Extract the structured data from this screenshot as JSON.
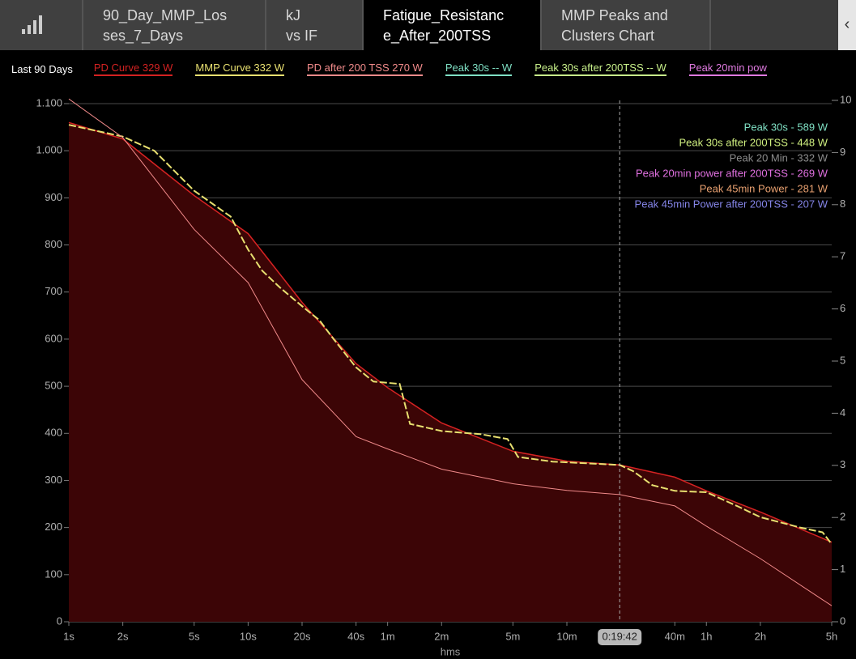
{
  "tabs": [
    {
      "lines": [
        "90_Day_MMP_Los",
        "ses_7_Days"
      ]
    },
    {
      "lines": [
        "kJ",
        "vs IF"
      ]
    },
    {
      "lines": [
        "Fatigue_Resistanc",
        "e_After_200TSS"
      ]
    },
    {
      "lines": [
        "MMP Peaks and",
        "Clusters Chart"
      ]
    }
  ],
  "back_button": "‹",
  "legend_title": "Last 90 Days",
  "chart_data": {
    "type": "line",
    "x_label": "hms",
    "x_log": true,
    "xlim": [
      1,
      18000
    ],
    "xticks": [
      {
        "value": 1,
        "label": "1s"
      },
      {
        "value": 2,
        "label": "2s"
      },
      {
        "value": 5,
        "label": "5s"
      },
      {
        "value": 10,
        "label": "10s"
      },
      {
        "value": 20,
        "label": "20s"
      },
      {
        "value": 40,
        "label": "40s"
      },
      {
        "value": 60,
        "label": "1m"
      },
      {
        "value": 120,
        "label": "2m"
      },
      {
        "value": 300,
        "label": "5m"
      },
      {
        "value": 600,
        "label": "10m"
      },
      {
        "value": 2400,
        "label": "40m"
      },
      {
        "value": 3600,
        "label": "1h"
      },
      {
        "value": 7200,
        "label": "2h"
      },
      {
        "value": 18000,
        "label": "5h"
      }
    ],
    "ylim": [
      0,
      1100
    ],
    "yticks": [
      0,
      100,
      200,
      300,
      400,
      500,
      600,
      700,
      800,
      900,
      {
        "value": 1000,
        "label": "1.000"
      },
      {
        "value": 1100,
        "label": "1.100"
      }
    ],
    "y2lim": [
      0,
      10
    ],
    "y2ticks": [
      0,
      1,
      2,
      3,
      4,
      5,
      6,
      7,
      8,
      9,
      10
    ],
    "grid": true,
    "cursor": {
      "value": 1182,
      "label": "0:19:42"
    },
    "series": [
      {
        "name": "PD Curve  329 W",
        "color": "#d42222",
        "fill": "#3c0506",
        "x": [
          1,
          2,
          5,
          10,
          20,
          40,
          60,
          120,
          300,
          600,
          1182,
          2400,
          3600,
          7200,
          18000
        ],
        "values": [
          1060,
          1025,
          905,
          824,
          678,
          548,
          497,
          422,
          362,
          341,
          333,
          307,
          278,
          233,
          169
        ]
      },
      {
        "name": "MMP Curve  332 W",
        "color": "#e8e070",
        "dashed": true,
        "x": [
          1,
          2,
          3,
          5,
          8,
          10,
          12,
          15,
          20,
          25,
          30,
          40,
          50,
          70,
          80,
          120,
          200,
          280,
          320,
          500,
          1182,
          1400,
          1800,
          2400,
          3600,
          5400,
          7200,
          12000,
          16000,
          18000
        ],
        "values": [
          1055,
          1030,
          1000,
          915,
          860,
          790,
          745,
          710,
          670,
          640,
          600,
          540,
          510,
          505,
          420,
          405,
          398,
          388,
          350,
          340,
          333,
          320,
          290,
          278,
          275,
          245,
          222,
          200,
          190,
          165
        ]
      },
      {
        "name": "PD after 200 TSS  270 W",
        "color": "#f08a8a",
        "x": [
          1,
          2,
          5,
          10,
          20,
          40,
          60,
          120,
          300,
          600,
          1182,
          2400,
          3600,
          7200,
          18000
        ],
        "values": [
          1110,
          1028,
          833,
          720,
          514,
          393,
          367,
          324,
          293,
          279,
          270,
          246,
          203,
          134,
          34
        ]
      }
    ],
    "extra_legend": [
      {
        "name": "Peak 30s  -- W",
        "color": "#7fe0c4"
      },
      {
        "name": "Peak 30s after 200TSS  -- W",
        "color": "#c8f08a"
      },
      {
        "name": "Peak 20min pow",
        "color": "#e07ae0"
      }
    ],
    "annotations": [
      {
        "text": "Peak 30s - 589 W",
        "color": "#7fe0c4"
      },
      {
        "text": "Peak 30s after 200TSS - 448 W",
        "color": "#d0f080"
      },
      {
        "text": "Peak 20 Min - 332 W",
        "color": "#8c8c8c"
      },
      {
        "text": "Peak 20min power after 200TSS - 269 W",
        "color": "#e070e0"
      },
      {
        "text": "Peak 45min Power - 281 W",
        "color": "#e8a070"
      },
      {
        "text": "Peak 45min Power after 200TSS - 207 W",
        "color": "#8585e8"
      }
    ]
  }
}
